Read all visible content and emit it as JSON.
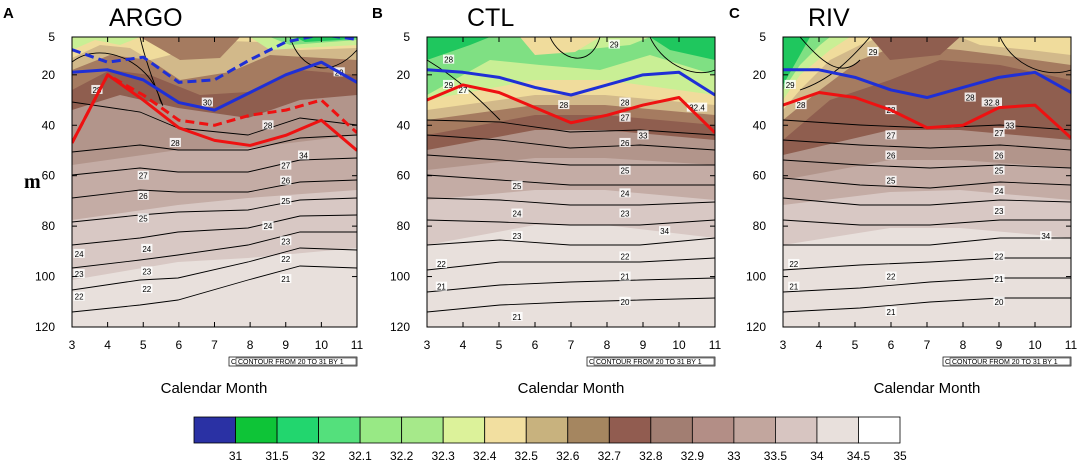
{
  "chart_data": [
    {
      "type": "contour",
      "letter": "A",
      "title": "ARGO",
      "xlabel": "Calendar Month",
      "ylabel": "m",
      "x_ticks": [
        3,
        4,
        5,
        6,
        7,
        8,
        9,
        10,
        11
      ],
      "y_ticks": [
        5,
        20,
        40,
        60,
        80,
        100,
        120
      ],
      "xlim": [
        3,
        11
      ],
      "ylim": [
        5,
        120
      ],
      "info": "CONTOUR FROM 20 TO 31 BY 1",
      "lines": [
        {
          "name": "solid-blue",
          "color": "#1f2fd6",
          "dash": false,
          "x": [
            3,
            4,
            5,
            6,
            7,
            8,
            9,
            10,
            11
          ],
          "y": [
            19,
            18,
            22,
            31,
            34,
            27,
            20,
            15,
            23
          ]
        },
        {
          "name": "dashed-blue",
          "color": "#1f2fd6",
          "dash": true,
          "x": [
            3,
            4,
            5,
            6,
            7,
            8,
            9,
            10,
            11
          ],
          "y": [
            10,
            15,
            13,
            23,
            22,
            14,
            7,
            4,
            6
          ]
        },
        {
          "name": "solid-red",
          "color": "#ee1111",
          "dash": false,
          "x": [
            3,
            4,
            5,
            6,
            7,
            8,
            9,
            10,
            11
          ],
          "y": [
            47,
            20,
            30,
            41,
            46,
            48,
            44,
            38,
            50
          ]
        },
        {
          "name": "dashed-red",
          "color": "#ee1111",
          "dash": true,
          "x": [
            3,
            4,
            5,
            6,
            7,
            8,
            9,
            10,
            11
          ],
          "y": [
            47,
            20,
            28,
            38,
            40,
            36,
            34,
            30,
            43
          ]
        }
      ],
      "contour_labels": [
        {
          "text": "29",
          "x": 10.5,
          "y": 19
        },
        {
          "text": "28",
          "x": 3.7,
          "y": 26
        },
        {
          "text": "30",
          "x": 6.8,
          "y": 31
        },
        {
          "text": "28",
          "x": 5.9,
          "y": 47
        },
        {
          "text": "28",
          "x": 8.5,
          "y": 40
        },
        {
          "text": "34",
          "x": 9.5,
          "y": 52
        },
        {
          "text": "27",
          "x": 5.0,
          "y": 60
        },
        {
          "text": "27",
          "x": 9.0,
          "y": 56
        },
        {
          "text": "26",
          "x": 5.0,
          "y": 68
        },
        {
          "text": "26",
          "x": 9.0,
          "y": 62
        },
        {
          "text": "25",
          "x": 5.0,
          "y": 77
        },
        {
          "text": "25",
          "x": 9.0,
          "y": 70
        },
        {
          "text": "24",
          "x": 3.2,
          "y": 91
        },
        {
          "text": "24",
          "x": 5.1,
          "y": 89
        },
        {
          "text": "24",
          "x": 8.5,
          "y": 80
        },
        {
          "text": "23",
          "x": 3.2,
          "y": 99
        },
        {
          "text": "23",
          "x": 5.1,
          "y": 98
        },
        {
          "text": "23",
          "x": 9.0,
          "y": 86
        },
        {
          "text": "22",
          "x": 3.2,
          "y": 108
        },
        {
          "text": "22",
          "x": 5.1,
          "y": 105
        },
        {
          "text": "22",
          "x": 9.0,
          "y": 93
        },
        {
          "text": "21",
          "x": 9.0,
          "y": 101
        }
      ]
    },
    {
      "type": "contour",
      "letter": "B",
      "title": "CTL",
      "xlabel": "Calendar Month",
      "ylabel": "",
      "x_ticks": [
        3,
        4,
        5,
        6,
        7,
        8,
        9,
        10,
        11
      ],
      "y_ticks": [
        5,
        20,
        40,
        60,
        80,
        100,
        120
      ],
      "xlim": [
        3,
        11
      ],
      "ylim": [
        5,
        120
      ],
      "info": "CONTOUR FROM 20 TO 31 BY 1",
      "lines": [
        {
          "name": "solid-blue",
          "color": "#1f2fd6",
          "dash": false,
          "x": [
            3,
            4,
            5,
            6,
            7,
            8,
            9,
            10,
            11
          ],
          "y": [
            18,
            19,
            21,
            25,
            28,
            24,
            20,
            19,
            28
          ]
        },
        {
          "name": "solid-red",
          "color": "#ee1111",
          "dash": false,
          "x": [
            3,
            4,
            5,
            6,
            7,
            8,
            9,
            10,
            11
          ],
          "y": [
            30,
            24,
            27,
            33,
            39,
            36,
            32,
            29,
            43
          ]
        }
      ],
      "contour_labels": [
        {
          "text": "29",
          "x": 8.2,
          "y": 8
        },
        {
          "text": "28",
          "x": 3.6,
          "y": 14
        },
        {
          "text": "29",
          "x": 3.6,
          "y": 24
        },
        {
          "text": "27",
          "x": 4.0,
          "y": 26
        },
        {
          "text": "28",
          "x": 6.8,
          "y": 32
        },
        {
          "text": "28",
          "x": 8.5,
          "y": 31
        },
        {
          "text": "32.4",
          "x": 10.5,
          "y": 33
        },
        {
          "text": "27",
          "x": 8.5,
          "y": 37
        },
        {
          "text": "33",
          "x": 9.0,
          "y": 44
        },
        {
          "text": "26",
          "x": 8.5,
          "y": 47
        },
        {
          "text": "25",
          "x": 8.5,
          "y": 58
        },
        {
          "text": "25",
          "x": 5.5,
          "y": 64
        },
        {
          "text": "24",
          "x": 8.5,
          "y": 67
        },
        {
          "text": "24",
          "x": 5.5,
          "y": 75
        },
        {
          "text": "23",
          "x": 8.5,
          "y": 75
        },
        {
          "text": "34",
          "x": 9.6,
          "y": 82
        },
        {
          "text": "23",
          "x": 5.5,
          "y": 84
        },
        {
          "text": "22",
          "x": 3.4,
          "y": 95
        },
        {
          "text": "22",
          "x": 8.5,
          "y": 92
        },
        {
          "text": "21",
          "x": 3.4,
          "y": 104
        },
        {
          "text": "21",
          "x": 8.5,
          "y": 100
        },
        {
          "text": "20",
          "x": 8.5,
          "y": 110
        },
        {
          "text": "21",
          "x": 5.5,
          "y": 116
        }
      ]
    },
    {
      "type": "contour",
      "letter": "C",
      "title": "RIV",
      "xlabel": "Calendar Month",
      "ylabel": "",
      "x_ticks": [
        3,
        4,
        5,
        6,
        7,
        8,
        9,
        10,
        11
      ],
      "y_ticks": [
        5,
        20,
        40,
        60,
        80,
        100,
        120
      ],
      "xlim": [
        3,
        11
      ],
      "ylim": [
        5,
        120
      ],
      "info": "CONTOUR FROM 20 TO 31 BY 1",
      "lines": [
        {
          "name": "solid-blue",
          "color": "#1f2fd6",
          "dash": false,
          "x": [
            3,
            4,
            5,
            6,
            7,
            8,
            9,
            10,
            11
          ],
          "y": [
            18,
            18,
            21,
            26,
            29,
            25,
            21,
            19,
            27
          ]
        },
        {
          "name": "solid-red",
          "color": "#ee1111",
          "dash": false,
          "x": [
            3,
            4,
            5,
            6,
            7,
            8,
            9,
            10,
            11
          ],
          "y": [
            32,
            27,
            29,
            34,
            41,
            40,
            33,
            32,
            45
          ]
        }
      ],
      "contour_labels": [
        {
          "text": "29",
          "x": 5.5,
          "y": 11
        },
        {
          "text": "29",
          "x": 3.2,
          "y": 24
        },
        {
          "text": "28",
          "x": 3.5,
          "y": 32
        },
        {
          "text": "28",
          "x": 6.0,
          "y": 34
        },
        {
          "text": "32.8",
          "x": 8.8,
          "y": 31
        },
        {
          "text": "28",
          "x": 8.2,
          "y": 29
        },
        {
          "text": "33",
          "x": 9.3,
          "y": 40
        },
        {
          "text": "27",
          "x": 6.0,
          "y": 44
        },
        {
          "text": "27",
          "x": 9.0,
          "y": 43
        },
        {
          "text": "26",
          "x": 6.0,
          "y": 52
        },
        {
          "text": "26",
          "x": 9.0,
          "y": 52
        },
        {
          "text": "25",
          "x": 6.0,
          "y": 62
        },
        {
          "text": "25",
          "x": 9.0,
          "y": 58
        },
        {
          "text": "24",
          "x": 9.0,
          "y": 66
        },
        {
          "text": "23",
          "x": 9.0,
          "y": 74
        },
        {
          "text": "34",
          "x": 10.3,
          "y": 84
        },
        {
          "text": "22",
          "x": 3.3,
          "y": 95
        },
        {
          "text": "22",
          "x": 6.0,
          "y": 100
        },
        {
          "text": "22",
          "x": 9.0,
          "y": 92
        },
        {
          "text": "21",
          "x": 3.3,
          "y": 104
        },
        {
          "text": "21",
          "x": 9.0,
          "y": 101
        },
        {
          "text": "20",
          "x": 9.0,
          "y": 110
        },
        {
          "text": "21",
          "x": 6.0,
          "y": 114
        }
      ]
    }
  ],
  "colorbar": {
    "labels": [
      "31",
      "31.5",
      "32",
      "32.1",
      "32.2",
      "32.3",
      "32.4",
      "32.5",
      "32.6",
      "32.7",
      "32.8",
      "32.9",
      "33",
      "33.5",
      "34",
      "34.5",
      "35"
    ],
    "colors": [
      "#2a31a4",
      "#0ec437",
      "#22d66e",
      "#54e07c",
      "#98e985",
      "#a6e98a",
      "#dcf29a",
      "#f2dfa0",
      "#c8b27e",
      "#a58660",
      "#915c50",
      "#a27e72",
      "#b38e86",
      "#c2a69e",
      "#d7c5c1",
      "#e8e0dc",
      "#ffffff"
    ]
  },
  "colors": {
    "green_dark": "#1fc75e",
    "green": "#7fe083",
    "green_light": "#c9ef95",
    "yellow": "#f0dc9c",
    "tan": "#d2b98a",
    "brown": "#a57b60",
    "brown_dark": "#8f5e4f",
    "mauve": "#b2958b",
    "pink": "#c4aca5",
    "pink_light": "#d8c8c4",
    "gray_light": "#e8e0dc"
  }
}
